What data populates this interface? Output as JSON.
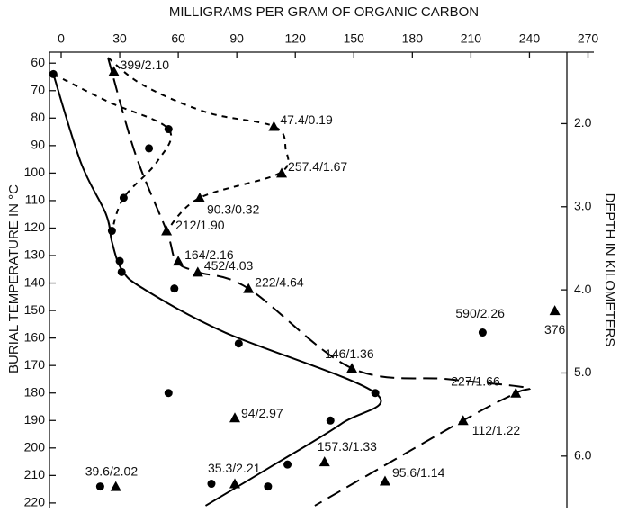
{
  "chart_data": {
    "type": "scatter",
    "x_label": "MILLIGRAMS PER GRAM OF ORGANIC CARBON",
    "y_label": "BURIAL TEMPERATURE IN °C",
    "y2_label": "DEPTH IN KILOMETERS",
    "xlim": [
      -6,
      273
    ],
    "xticks": [
      0,
      30,
      60,
      90,
      120,
      150,
      180,
      210,
      240,
      270
    ],
    "ylim": [
      56,
      222
    ],
    "y_inverted": true,
    "yticks": [
      60,
      70,
      80,
      90,
      100,
      110,
      120,
      130,
      140,
      150,
      160,
      170,
      180,
      190,
      200,
      210,
      220
    ],
    "y2lim": [
      1.14,
      6.63
    ],
    "y2ticks": [
      {
        "value": 2,
        "label": "2.0"
      },
      {
        "value": 3,
        "label": "3.0"
      },
      {
        "value": 4,
        "label": "4.0"
      },
      {
        "value": 5,
        "label": "5.0"
      },
      {
        "value": 6,
        "label": "6.0"
      }
    ],
    "curves": [
      {
        "style": "solid",
        "color": "#000000",
        "x": [
          -4,
          10,
          23,
          26,
          31,
          42,
          84,
          161,
          144,
          107,
          74
        ],
        "y": [
          64,
          96,
          115,
          125,
          135,
          142,
          158,
          180,
          191,
          207,
          221
        ]
      },
      {
        "style": "short-dash",
        "color": "#000000",
        "x": [
          -4,
          24,
          55,
          49,
          32,
          26
        ],
        "y": [
          64,
          74,
          84,
          96,
          109,
          121
        ]
      },
      {
        "style": "short-dash",
        "color": "#000000",
        "x": [
          24,
          42,
          75,
          109,
          115,
          112,
          71,
          54
        ],
        "y": [
          58,
          68,
          78,
          83,
          91,
          100,
          109,
          121
        ]
      },
      {
        "style": "long-dash",
        "color": "#000000",
        "x": [
          24,
          38,
          54,
          59,
          70,
          96,
          149,
          199,
          238,
          233,
          206,
          130
        ],
        "y": [
          58,
          93,
          121,
          132,
          136,
          142,
          171,
          175,
          178,
          180,
          190,
          221
        ]
      }
    ],
    "series": [
      {
        "marker": "circle",
        "color": "#000000",
        "x": [
          -4,
          55,
          45,
          32,
          26,
          30,
          31,
          58,
          91,
          55,
          161,
          138,
          216,
          116,
          20,
          77,
          106
        ],
        "y": [
          64,
          84,
          91,
          109,
          121,
          132,
          136,
          142,
          162,
          180,
          180,
          190,
          158,
          206,
          214,
          213,
          214
        ],
        "labels": [
          null,
          null,
          null,
          null,
          null,
          null,
          null,
          null,
          null,
          null,
          null,
          null,
          "590/2.26",
          null,
          null,
          null,
          null
        ]
      },
      {
        "marker": "triangle",
        "color": "#000000",
        "x": [
          27,
          109,
          113,
          71,
          54,
          60,
          70,
          96,
          149,
          233,
          206,
          135,
          166,
          89,
          89,
          28,
          253
        ],
        "y": [
          63,
          83,
          100,
          109,
          121,
          132,
          136,
          142,
          171,
          180,
          190,
          205,
          212,
          189,
          213,
          214,
          150
        ],
        "labels": [
          "399/2.10",
          "47.4/0.19",
          "257.4/1.67",
          "90.3/0.32",
          "212/1.90",
          "164/2.16",
          "452/4.03",
          "222/4.64",
          "146/1.36",
          "227/1.66",
          "112/1.22",
          "157.3/1.33",
          "95.6/1.14",
          "94/2.97",
          "35.3/2.21",
          "39.6/2.02",
          "376"
        ]
      }
    ]
  }
}
